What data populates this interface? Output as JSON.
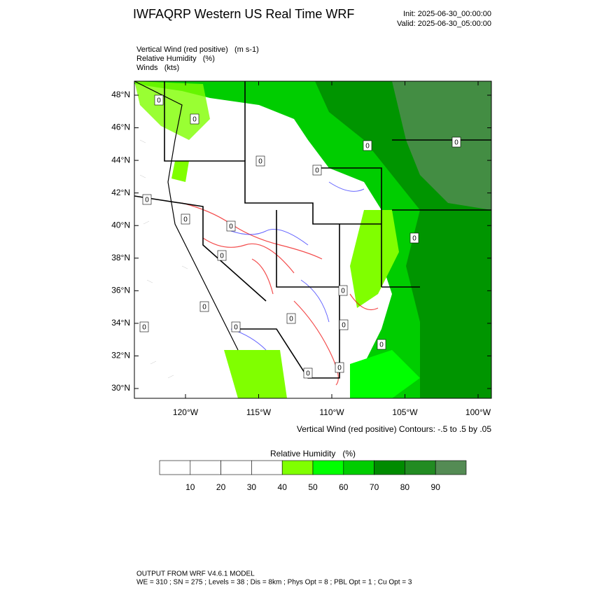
{
  "header": {
    "title": "IWFAQRP Western US Real Time WRF",
    "init": "Init: 2025-06-30_00:00:00",
    "valid": "Valid: 2025-06-30_05:00:00"
  },
  "fields": [
    "Vertical Wind (red positive)   (m s-1)",
    "Relative Humidity   (%)",
    "Winds   (kts)"
  ],
  "map": {
    "lat_ticks": [
      {
        "value": 48,
        "label": "48°N"
      },
      {
        "value": 46,
        "label": "46°N"
      },
      {
        "value": 44,
        "label": "44°N"
      },
      {
        "value": 42,
        "label": "42°N"
      },
      {
        "value": 40,
        "label": "40°N"
      },
      {
        "value": 38,
        "label": "38°N"
      },
      {
        "value": 36,
        "label": "36°N"
      },
      {
        "value": 34,
        "label": "34°N"
      },
      {
        "value": 32,
        "label": "32°N"
      },
      {
        "value": 30,
        "label": "30°N"
      }
    ],
    "lon_ticks": [
      {
        "value": -120,
        "label": "120°W"
      },
      {
        "value": -115,
        "label": "115°W"
      },
      {
        "value": -110,
        "label": "110°W"
      },
      {
        "value": -105,
        "label": "105°W"
      },
      {
        "value": -100,
        "label": "100°W"
      }
    ],
    "contour_label": "0",
    "contour_note": "Vertical Wind (red positive) Contours: -.5 to .5 by .05"
  },
  "colorbar": {
    "title": "Relative Humidity   (%)",
    "levels": [
      10,
      20,
      30,
      40,
      50,
      60,
      70,
      80,
      90
    ],
    "colors": [
      "#ffffff",
      "#ffffff",
      "#ffffff",
      "#ffffff",
      "#80ff00",
      "#00ff00",
      "#00cd00",
      "#008b00",
      "#228b22",
      "#548b54"
    ]
  },
  "footer": {
    "line1": "OUTPUT FROM WRF V4.6.1 MODEL",
    "line2": "WE = 310 ; SN = 275 ; Levels = 38 ; Dis = 8km ; Phys Opt = 8 ; PBL Opt = 1 ; Cu Opt = 3"
  }
}
